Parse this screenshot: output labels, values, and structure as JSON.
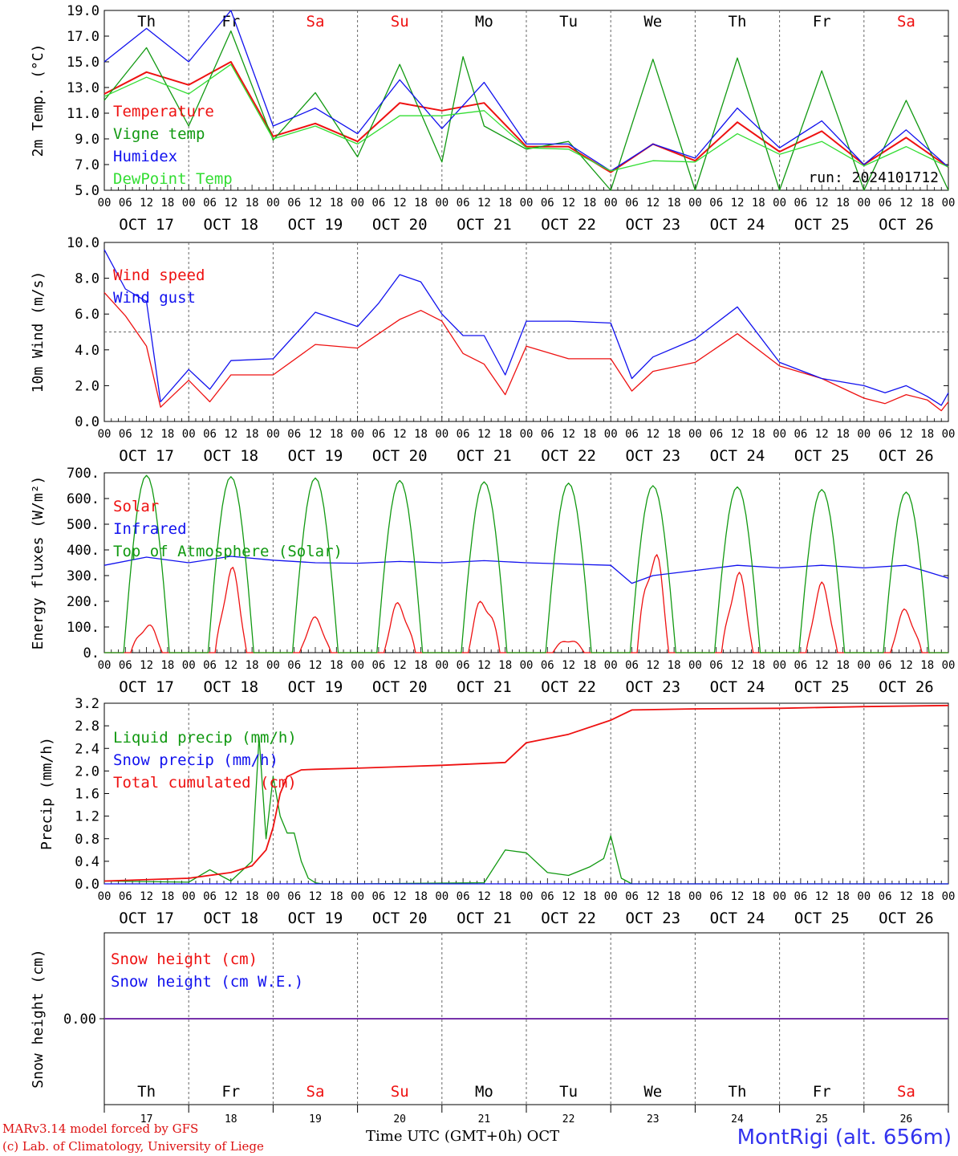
{
  "colors": {
    "red": "#ee1111",
    "green": "#119911",
    "blue": "#1111ee",
    "light_green": "#33dd33",
    "purple": "#7733aa",
    "grid": "#666666",
    "weekend": "#ee1111"
  },
  "x_axis": {
    "hour_ticks": [
      "00",
      "06",
      "12",
      "18"
    ],
    "date_labels": [
      "OCT 17",
      "OCT 18",
      "OCT 19",
      "OCT 20",
      "OCT 21",
      "OCT 22",
      "OCT 23",
      "OCT 24",
      "OCT 25",
      "OCT 26"
    ],
    "day_labels": [
      {
        "text": "Th",
        "weekend": false
      },
      {
        "text": "Fr",
        "weekend": false
      },
      {
        "text": "Sa",
        "weekend": true
      },
      {
        "text": "Su",
        "weekend": true
      },
      {
        "text": "Mo",
        "weekend": false
      },
      {
        "text": "Tu",
        "weekend": false
      },
      {
        "text": "We",
        "weekend": false
      },
      {
        "text": "Th",
        "weekend": false
      },
      {
        "text": "Fr",
        "weekend": false
      },
      {
        "text": "Sa",
        "weekend": true
      }
    ],
    "day_numbers": [
      "17",
      "18",
      "19",
      "20",
      "21",
      "22",
      "23",
      "24",
      "25",
      "26"
    ],
    "axis_title": "Time UTC (GMT+0h) OCT"
  },
  "footer": {
    "model": "MARv3.14 model forced by GFS",
    "copyright": "(c) Lab. of Climatology, University of Liege",
    "station": "MontRigi (alt. 656m)"
  },
  "chart_data": [
    {
      "id": "temperature",
      "type": "line",
      "ylabel": "2m Temp. (°C)",
      "ylim": [
        5.0,
        19.0
      ],
      "yticks": [
        "5.0",
        "7.0",
        "9.0",
        "11.0",
        "13.0",
        "15.0",
        "17.0",
        "19.0"
      ],
      "run_label": "run: 2024101712",
      "series": [
        {
          "name": "Temperature",
          "color": "#ee1111",
          "x_hours": [
            0,
            12,
            24,
            36,
            48,
            60,
            72,
            84,
            96,
            108,
            120,
            132,
            144,
            156,
            168,
            180,
            192,
            204,
            216,
            228,
            240
          ],
          "values": [
            12.5,
            14.2,
            13.2,
            15.0,
            9.2,
            10.2,
            8.8,
            11.8,
            11.2,
            11.8,
            8.4,
            8.4,
            6.4,
            8.6,
            7.3,
            10.3,
            8.0,
            9.6,
            7.0,
            9.1,
            6.8
          ]
        },
        {
          "name": "Vigne temp",
          "color": "#119911",
          "x_hours": [
            0,
            12,
            24,
            36,
            48,
            60,
            72,
            84,
            96,
            102,
            108,
            120,
            132,
            144,
            156,
            168,
            180,
            192,
            204,
            216,
            228,
            240
          ],
          "values": [
            12.0,
            16.1,
            10.0,
            17.4,
            8.9,
            12.6,
            7.6,
            14.8,
            7.2,
            15.4,
            10.0,
            8.2,
            8.8,
            5.0,
            15.2,
            5.0,
            15.3,
            5.0,
            14.3,
            5.0,
            12.0,
            5.0
          ]
        },
        {
          "name": "Humidex",
          "color": "#1111ee",
          "x_hours": [
            0,
            12,
            24,
            36,
            48,
            60,
            72,
            84,
            96,
            108,
            120,
            132,
            144,
            156,
            168,
            180,
            192,
            204,
            216,
            228,
            240
          ],
          "values": [
            15.0,
            17.6,
            15.0,
            19.0,
            10.0,
            11.4,
            9.4,
            13.6,
            9.8,
            13.4,
            8.6,
            8.6,
            6.5,
            8.6,
            7.5,
            11.4,
            8.3,
            10.4,
            7.0,
            9.7,
            6.8
          ]
        },
        {
          "name": "DewPoint Temp",
          "color": "#33dd33",
          "x_hours": [
            0,
            12,
            24,
            36,
            48,
            60,
            72,
            84,
            96,
            108,
            120,
            132,
            144,
            156,
            168,
            180,
            192,
            204,
            216,
            228,
            240
          ],
          "values": [
            12.3,
            13.8,
            12.5,
            14.8,
            9.0,
            10.0,
            8.6,
            10.8,
            10.8,
            11.2,
            8.3,
            8.2,
            6.5,
            7.3,
            7.2,
            9.4,
            7.8,
            8.8,
            6.9,
            8.4,
            6.8
          ]
        }
      ]
    },
    {
      "id": "wind",
      "type": "line",
      "ylabel": "10m Wind (m/s)",
      "ylim": [
        0.0,
        10.0
      ],
      "yticks": [
        "0.0",
        "2.0",
        "4.0",
        "6.0",
        "8.0",
        "10.0"
      ],
      "reference_line": 5.0,
      "series": [
        {
          "name": "Wind speed",
          "color": "#ee1111",
          "x_hours": [
            0,
            6,
            12,
            16,
            24,
            30,
            36,
            48,
            60,
            72,
            84,
            90,
            96,
            102,
            108,
            114,
            120,
            132,
            144,
            150,
            156,
            168,
            180,
            192,
            204,
            216,
            222,
            228,
            234,
            238,
            240
          ],
          "values": [
            7.2,
            5.9,
            4.2,
            0.8,
            2.3,
            1.1,
            2.6,
            2.6,
            4.3,
            4.1,
            5.7,
            6.2,
            5.6,
            3.8,
            3.2,
            1.5,
            4.2,
            3.5,
            3.5,
            1.7,
            2.8,
            3.3,
            4.9,
            3.1,
            2.4,
            1.3,
            1.0,
            1.5,
            1.2,
            0.6,
            1.1
          ]
        },
        {
          "name": "Wind gust",
          "color": "#1111ee",
          "x_hours": [
            0,
            6,
            12,
            16,
            24,
            30,
            36,
            48,
            60,
            72,
            78,
            84,
            90,
            96,
            102,
            108,
            114,
            120,
            132,
            144,
            150,
            156,
            168,
            180,
            192,
            204,
            216,
            222,
            228,
            234,
            238,
            240
          ],
          "values": [
            9.6,
            7.4,
            6.7,
            1.1,
            2.9,
            1.8,
            3.4,
            3.5,
            6.1,
            5.3,
            6.6,
            8.2,
            7.8,
            6.0,
            4.8,
            4.8,
            2.6,
            5.6,
            5.6,
            5.5,
            2.4,
            3.6,
            4.6,
            6.4,
            3.3,
            2.4,
            2.0,
            1.6,
            2.0,
            1.4,
            0.9,
            1.6
          ]
        }
      ]
    },
    {
      "id": "energy",
      "type": "line",
      "ylabel": "Energy fluxes (W/m²)",
      "ylim": [
        0,
        700
      ],
      "yticks": [
        "0.",
        "100.",
        "200.",
        "300.",
        "400.",
        "500.",
        "600.",
        "700."
      ],
      "series": [
        {
          "name": "Solar",
          "color": "#ee1111",
          "daily_peaks": [
            120,
            340,
            140,
            205,
            235,
            60,
            440,
            325,
            275,
            175
          ]
        },
        {
          "name": "Infrared",
          "color": "#1111ee",
          "x_hours": [
            0,
            12,
            24,
            36,
            48,
            60,
            72,
            84,
            96,
            108,
            120,
            132,
            144,
            150,
            156,
            168,
            180,
            192,
            204,
            216,
            228,
            240
          ],
          "values": [
            340,
            372,
            350,
            375,
            360,
            350,
            348,
            355,
            350,
            358,
            350,
            345,
            340,
            270,
            300,
            320,
            340,
            330,
            340,
            330,
            340,
            290
          ]
        },
        {
          "name": "Top of Atmosphere (Solar)",
          "color": "#119911",
          "daily_peaks": [
            690,
            685,
            680,
            670,
            665,
            660,
            650,
            645,
            635,
            625
          ]
        }
      ]
    },
    {
      "id": "precip",
      "type": "line",
      "ylabel": "Precip (mm/h)",
      "ylim": [
        0.0,
        3.2
      ],
      "yticks": [
        "0.0",
        "0.4",
        "0.8",
        "1.2",
        "1.6",
        "2.0",
        "2.4",
        "2.8",
        "3.2"
      ],
      "series": [
        {
          "name": "Liquid precip (mm/h)",
          "color": "#119911",
          "x_hours": [
            0,
            24,
            30,
            36,
            42,
            44,
            46,
            48,
            50,
            52,
            54,
            56,
            58,
            60,
            62,
            64,
            66,
            72,
            108,
            114,
            120,
            126,
            132,
            138,
            142,
            144,
            147,
            150,
            240
          ],
          "values": [
            0.05,
            0.03,
            0.25,
            0.05,
            0.4,
            2.6,
            0.8,
            1.9,
            1.2,
            0.9,
            0.9,
            0.4,
            0.1,
            0.02,
            0.0,
            0.0,
            0.0,
            0.0,
            0.02,
            0.6,
            0.55,
            0.2,
            0.15,
            0.3,
            0.45,
            0.85,
            0.1,
            0.0,
            0.0
          ]
        },
        {
          "name": "Snow precip (mm/h)",
          "color": "#1111ee",
          "x_hours": [
            0,
            240
          ],
          "values": [
            0.0,
            0.0
          ]
        },
        {
          "name": "Total cumulated (cm)",
          "color": "#ee1111",
          "x_hours": [
            0,
            24,
            36,
            42,
            46,
            48,
            50,
            52,
            56,
            60,
            72,
            96,
            114,
            120,
            132,
            144,
            150,
            168,
            192,
            216,
            240
          ],
          "values": [
            0.05,
            0.1,
            0.2,
            0.32,
            0.6,
            1.0,
            1.6,
            1.9,
            2.02,
            2.03,
            2.05,
            2.1,
            2.15,
            2.5,
            2.65,
            2.9,
            3.08,
            3.1,
            3.11,
            3.14,
            3.16
          ]
        }
      ]
    },
    {
      "id": "snow",
      "type": "line",
      "ylabel": "Snow height (cm)",
      "ylim": [
        -1.0,
        1.0
      ],
      "yticks": [
        "0.00"
      ],
      "series": [
        {
          "name": "Snow height (cm)",
          "color": "#ee1111",
          "x_hours": [
            0,
            240
          ],
          "values": [
            0.0,
            0.0
          ]
        },
        {
          "name": "Snow height (cm W.E.)",
          "color": "#1111ee",
          "x_hours": [
            0,
            240
          ],
          "values": [
            0.0,
            0.0
          ]
        }
      ]
    }
  ]
}
